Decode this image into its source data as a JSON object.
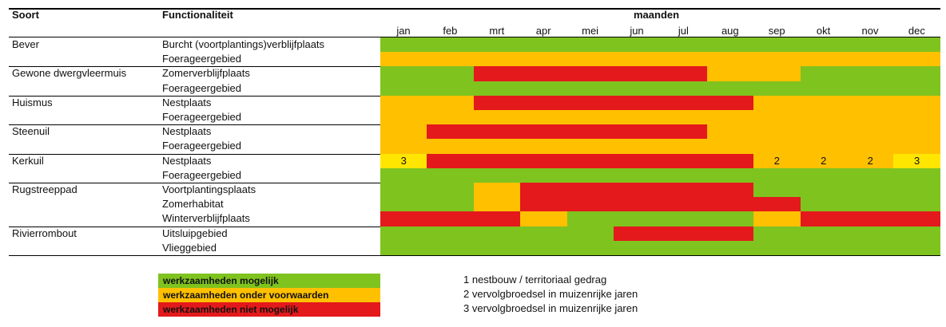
{
  "headers": {
    "species": "Soort",
    "functionality": "Functionaliteit",
    "months_label": "maanden"
  },
  "months": [
    "jan",
    "feb",
    "mrt",
    "apr",
    "mei",
    "jun",
    "jul",
    "aug",
    "sep",
    "okt",
    "nov",
    "dec"
  ],
  "colors": {
    "green": "#7fc31f",
    "orange": "#ffc000",
    "red": "#e3191c",
    "yellow": "#ffe600"
  },
  "species": [
    {
      "name": "Bever",
      "rows": [
        {
          "label": "Burcht (voortplantings)verblijfplaats",
          "segments": [
            {
              "from": 0,
              "to": 12,
              "color": "green"
            }
          ]
        },
        {
          "label": "Foerageergebied",
          "segments": [
            {
              "from": 0,
              "to": 12,
              "color": "orange"
            }
          ]
        }
      ]
    },
    {
      "name": "Gewone dwergvleermuis",
      "rows": [
        {
          "label": "Zomerverblijfplaats",
          "segments": [
            {
              "from": 0,
              "to": 2,
              "color": "green"
            },
            {
              "from": 2,
              "to": 7,
              "color": "red"
            },
            {
              "from": 7,
              "to": 9,
              "color": "orange"
            },
            {
              "from": 9,
              "to": 12,
              "color": "green"
            }
          ]
        },
        {
          "label": "Foerageergebied",
          "segments": [
            {
              "from": 0,
              "to": 12,
              "color": "green"
            }
          ]
        }
      ]
    },
    {
      "name": "Huismus",
      "rows": [
        {
          "label": "Nestplaats",
          "segments": [
            {
              "from": 0,
              "to": 2,
              "color": "orange"
            },
            {
              "from": 2,
              "to": 8,
              "color": "red"
            },
            {
              "from": 8,
              "to": 12,
              "color": "orange"
            }
          ]
        },
        {
          "label": "Foerageergebied",
          "segments": [
            {
              "from": 0,
              "to": 12,
              "color": "orange"
            }
          ]
        }
      ]
    },
    {
      "name": "Steenuil",
      "rows": [
        {
          "label": "Nestplaats",
          "segments": [
            {
              "from": 0,
              "to": 1,
              "color": "orange"
            },
            {
              "from": 1,
              "to": 7,
              "color": "red"
            },
            {
              "from": 7,
              "to": 12,
              "color": "orange"
            }
          ]
        },
        {
          "label": "Foerageergebied",
          "segments": [
            {
              "from": 0,
              "to": 12,
              "color": "orange"
            }
          ]
        }
      ]
    },
    {
      "name": "Kerkuil",
      "rows": [
        {
          "label": "Nestplaats",
          "segments": [
            {
              "from": 0,
              "to": 1,
              "color": "yellow",
              "text": "3"
            },
            {
              "from": 1,
              "to": 8,
              "color": "red"
            },
            {
              "from": 8,
              "to": 9,
              "color": "orange",
              "text": "2"
            },
            {
              "from": 9,
              "to": 10,
              "color": "orange",
              "text": "2"
            },
            {
              "from": 10,
              "to": 11,
              "color": "orange",
              "text": "2"
            },
            {
              "from": 11,
              "to": 12,
              "color": "yellow",
              "text": "3"
            }
          ]
        },
        {
          "label": "Foerageergebied",
          "segments": [
            {
              "from": 0,
              "to": 12,
              "color": "green"
            }
          ]
        }
      ]
    },
    {
      "name": "Rugstreeppad",
      "rows": [
        {
          "label": "Voortplantingsplaats",
          "segments": [
            {
              "from": 0,
              "to": 2,
              "color": "green"
            },
            {
              "from": 2,
              "to": 3,
              "color": "orange"
            },
            {
              "from": 3,
              "to": 8,
              "color": "red"
            },
            {
              "from": 8,
              "to": 12,
              "color": "green"
            }
          ]
        },
        {
          "label": "Zomerhabitat",
          "segments": [
            {
              "from": 0,
              "to": 2,
              "color": "green"
            },
            {
              "from": 2,
              "to": 3,
              "color": "orange"
            },
            {
              "from": 3,
              "to": 9,
              "color": "red"
            },
            {
              "from": 9,
              "to": 12,
              "color": "green"
            }
          ]
        },
        {
          "label": "Winterverblijfplaats",
          "segments": [
            {
              "from": 0,
              "to": 3,
              "color": "red"
            },
            {
              "from": 3,
              "to": 4,
              "color": "orange"
            },
            {
              "from": 4,
              "to": 8,
              "color": "green"
            },
            {
              "from": 8,
              "to": 9,
              "color": "orange"
            },
            {
              "from": 9,
              "to": 12,
              "color": "red"
            }
          ]
        }
      ]
    },
    {
      "name": "Rivierrombout",
      "rows": [
        {
          "label": "Uitsluipgebied",
          "segments": [
            {
              "from": 0,
              "to": 5,
              "color": "green"
            },
            {
              "from": 5,
              "to": 8,
              "color": "red"
            },
            {
              "from": 8,
              "to": 12,
              "color": "green"
            }
          ]
        },
        {
          "label": "Vlieggebied",
          "segments": [
            {
              "from": 0,
              "to": 12,
              "color": "green"
            }
          ]
        }
      ]
    }
  ],
  "legend": [
    {
      "label": "werkzaamheden mogelijk",
      "color": "green"
    },
    {
      "label": "werkzaamheden onder voorwaarden",
      "color": "orange"
    },
    {
      "label": "werkzaamheden niet mogelijk",
      "color": "red"
    }
  ],
  "notes": [
    "1  nestbouw / territoriaal gedrag",
    "2  vervolgbroedsel in muizenrijke jaren",
    "3  vervolgbroedsel in muizenrijke jaren"
  ]
}
